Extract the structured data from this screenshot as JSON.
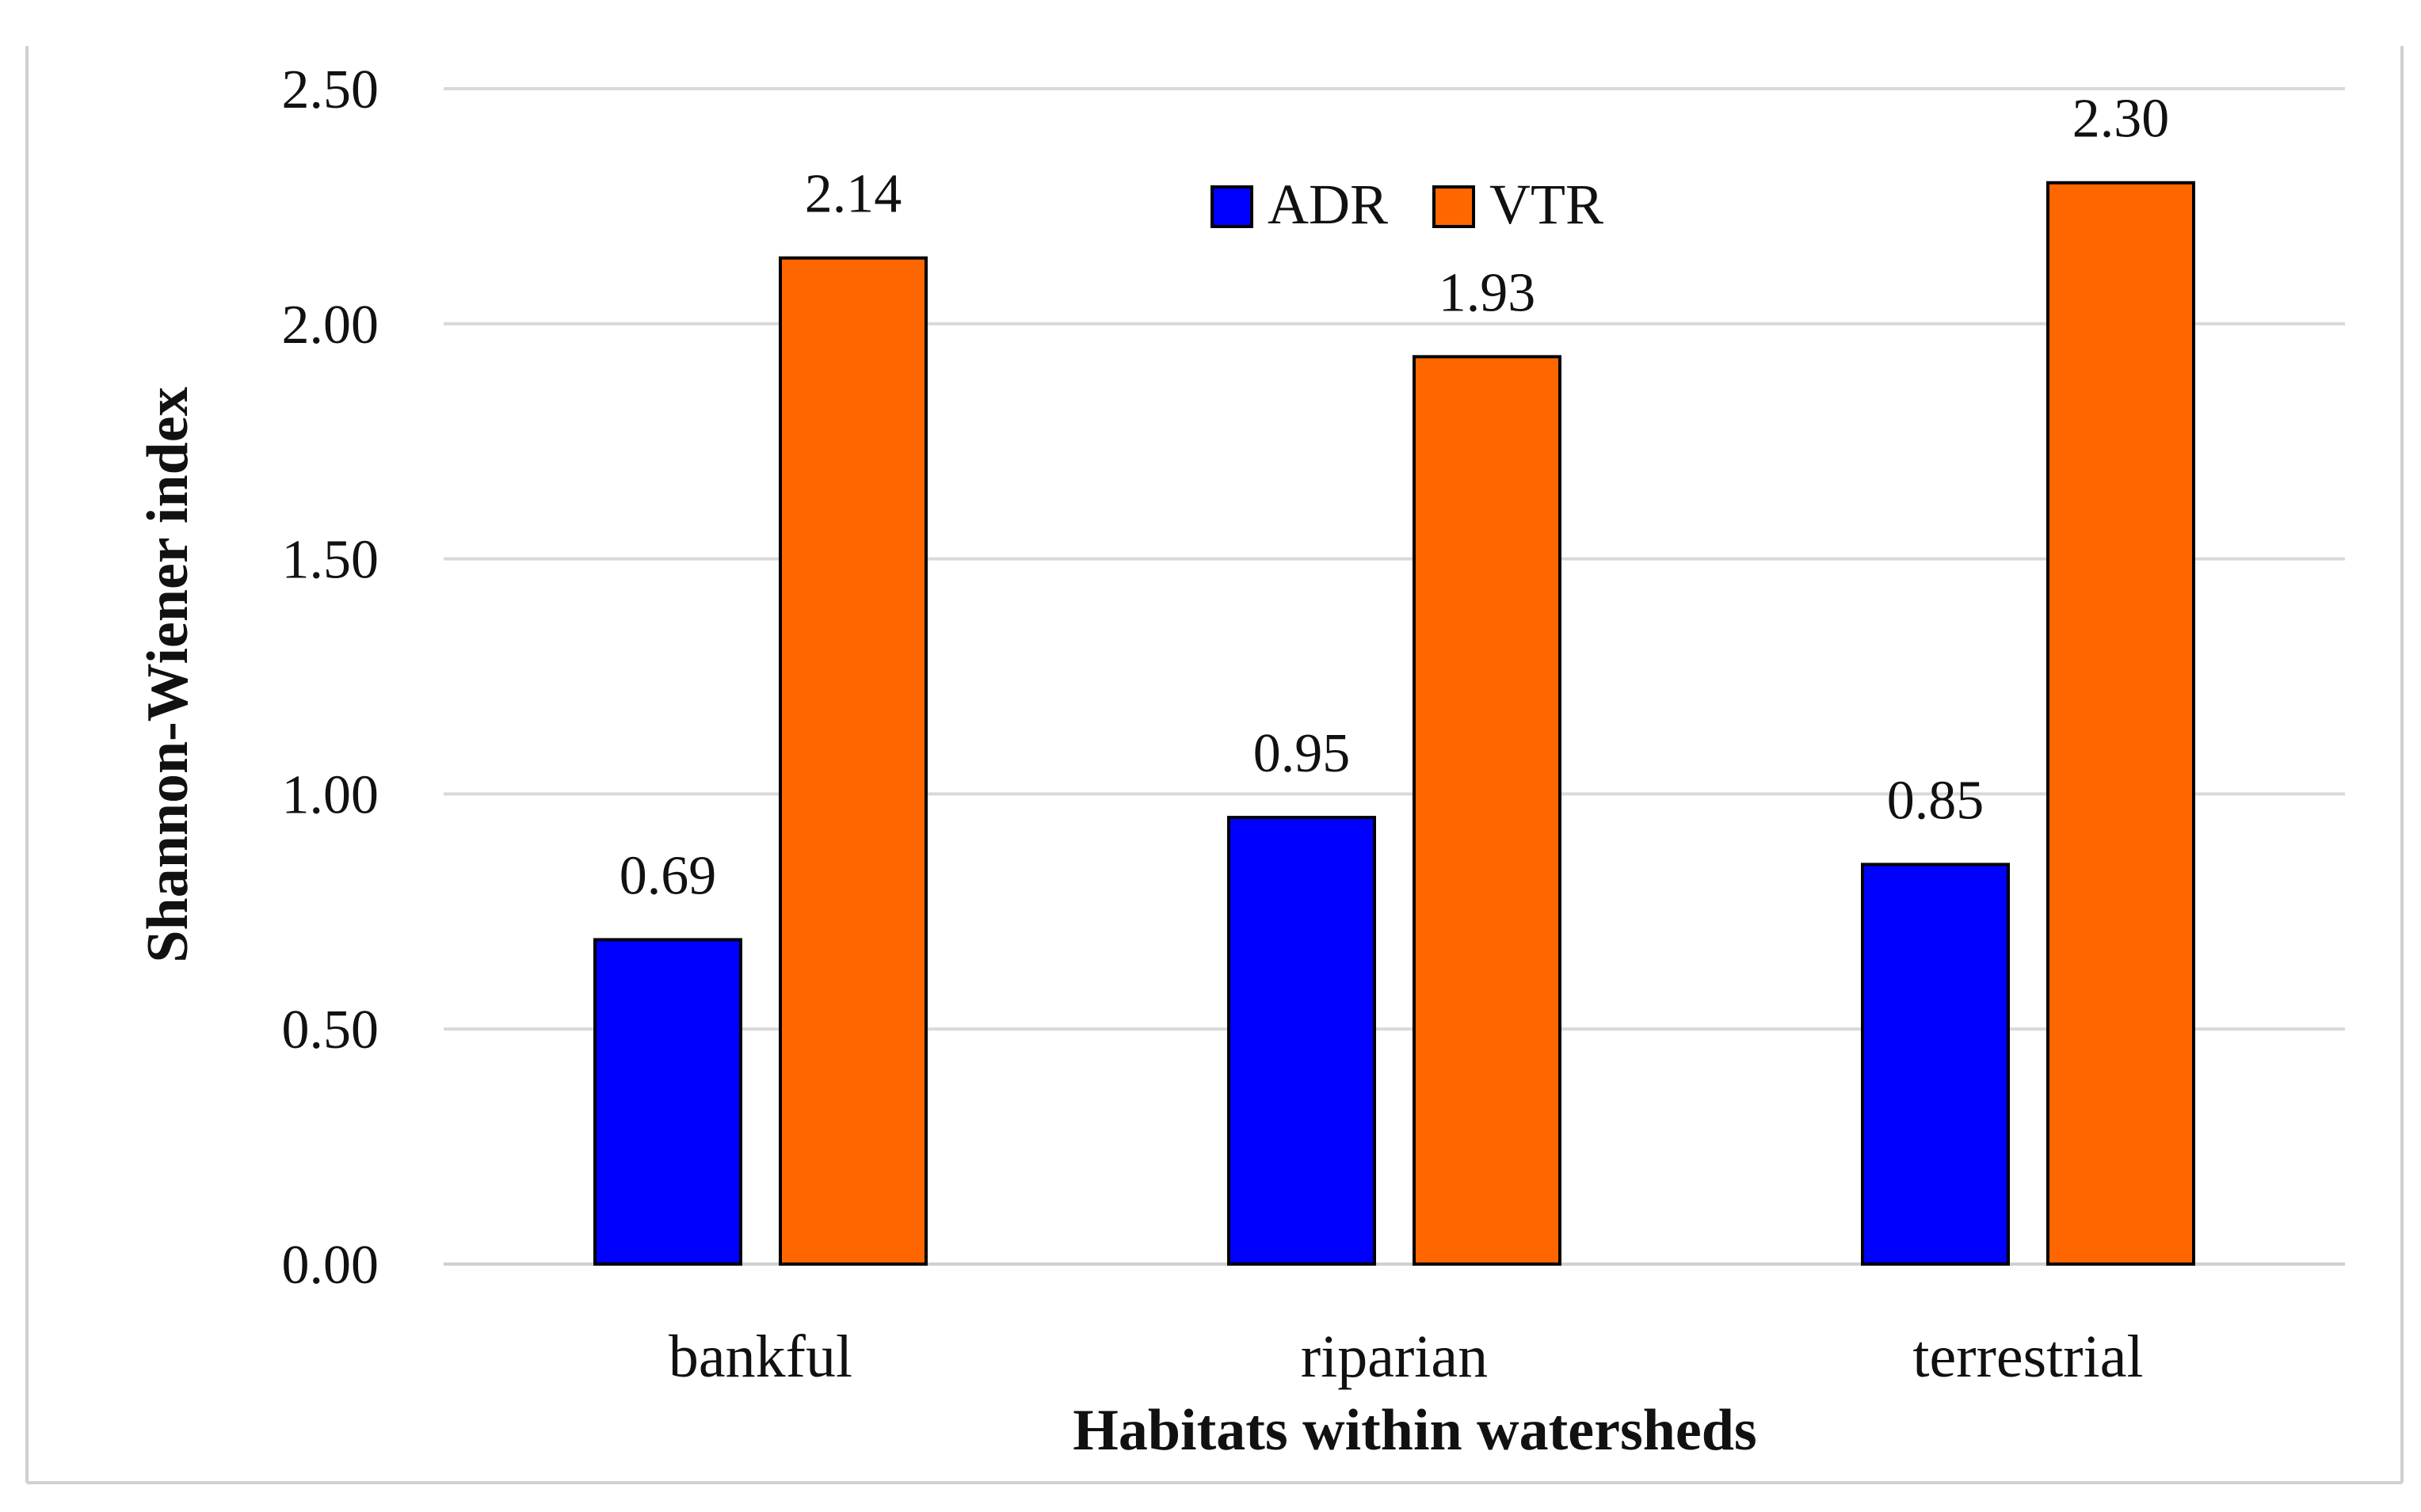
{
  "chart_data": {
    "type": "bar",
    "title": "",
    "xlabel": "Habitats within watersheds",
    "ylabel": "Shannon-Wiener index",
    "categories": [
      "bankful",
      "riparian",
      "terrestrial"
    ],
    "series": [
      {
        "name": "ADR",
        "color": "#0000ff",
        "values": [
          0.69,
          0.95,
          0.85
        ],
        "labels": [
          "0.69",
          "0.95",
          "0.85"
        ]
      },
      {
        "name": "VTR",
        "color": "#ff6600",
        "values": [
          2.14,
          1.93,
          2.3
        ],
        "labels": [
          "2.14",
          "1.93",
          "2.30"
        ]
      }
    ],
    "ylim": [
      0,
      2.5
    ],
    "yticks": [
      0,
      0.5,
      1.0,
      1.5,
      2.0,
      2.5
    ],
    "ytick_labels": [
      "0.00",
      "0.50",
      "1.00",
      "1.50",
      "2.00",
      "2.50"
    ],
    "grid": true,
    "legend_position": "top-center",
    "gridline_color": "#d9d9d9"
  }
}
